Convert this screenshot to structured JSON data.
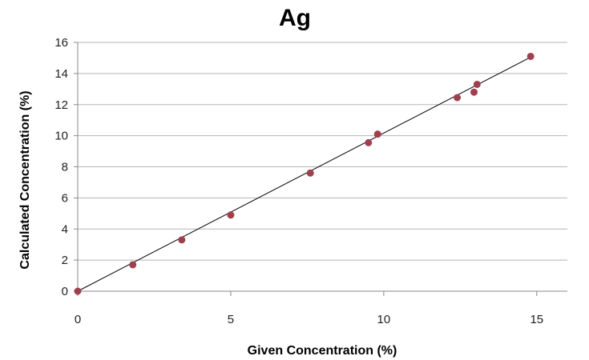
{
  "chart_data": {
    "type": "scatter",
    "title": "Ag",
    "xlabel": "Given Concentration (%)",
    "ylabel": "Calculated Concentration (%)",
    "xlim": [
      0,
      16
    ],
    "ylim": [
      0,
      16
    ],
    "xticks": [
      0,
      5,
      10,
      15
    ],
    "yticks": [
      0,
      2,
      4,
      6,
      8,
      10,
      12,
      14,
      16
    ],
    "grid": "horizontal",
    "series": [
      {
        "name": "Ag",
        "x": [
          0,
          1.8,
          3.4,
          5.0,
          7.6,
          9.5,
          9.8,
          12.4,
          12.95,
          13.05,
          14.8
        ],
        "y": [
          0,
          1.7,
          3.3,
          4.9,
          7.6,
          9.55,
          10.1,
          12.45,
          12.8,
          13.3,
          15.1
        ]
      }
    ],
    "trendline": {
      "x": [
        0,
        14.8
      ],
      "y": [
        0,
        15.05
      ]
    },
    "colors": {
      "marker": "#a0404f",
      "grid": "#b5b5b5",
      "axis": "#888888",
      "trendline": "#000000"
    }
  }
}
